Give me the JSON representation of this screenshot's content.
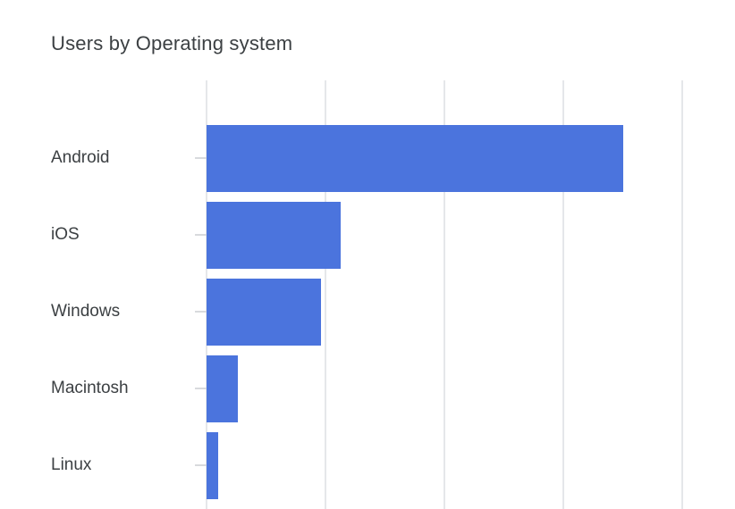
{
  "card": {
    "title": "Users by Operating system"
  },
  "colors": {
    "bar": "#4b74dd",
    "title_text": "#3c4043",
    "label_text": "#3c4043",
    "gridline": "#e5e7ea",
    "tick": "#d8dadd",
    "background": "#ffffff"
  },
  "chart_data": {
    "type": "bar",
    "orientation": "horizontal",
    "title": "Users by Operating system",
    "categories": [
      "Android",
      "iOS",
      "Windows",
      "Macintosh",
      "Linux"
    ],
    "values_gridline_units": [
      3.5,
      1.13,
      0.96,
      0.26,
      0.1
    ],
    "values_percent_of_max": [
      100,
      32.4,
      27.5,
      7.3,
      2.8
    ],
    "xlabel": "",
    "ylabel": "",
    "axis_tick_labels_visible": false,
    "xlim_gridline_units": [
      0,
      4.45
    ],
    "gridline_count": 5,
    "grid": "vertical-only",
    "legend": "none",
    "note": "X-axis numeric labels are not visible in the screenshot; bar values estimated in gridline units (1 unit = one gridline interval)."
  }
}
